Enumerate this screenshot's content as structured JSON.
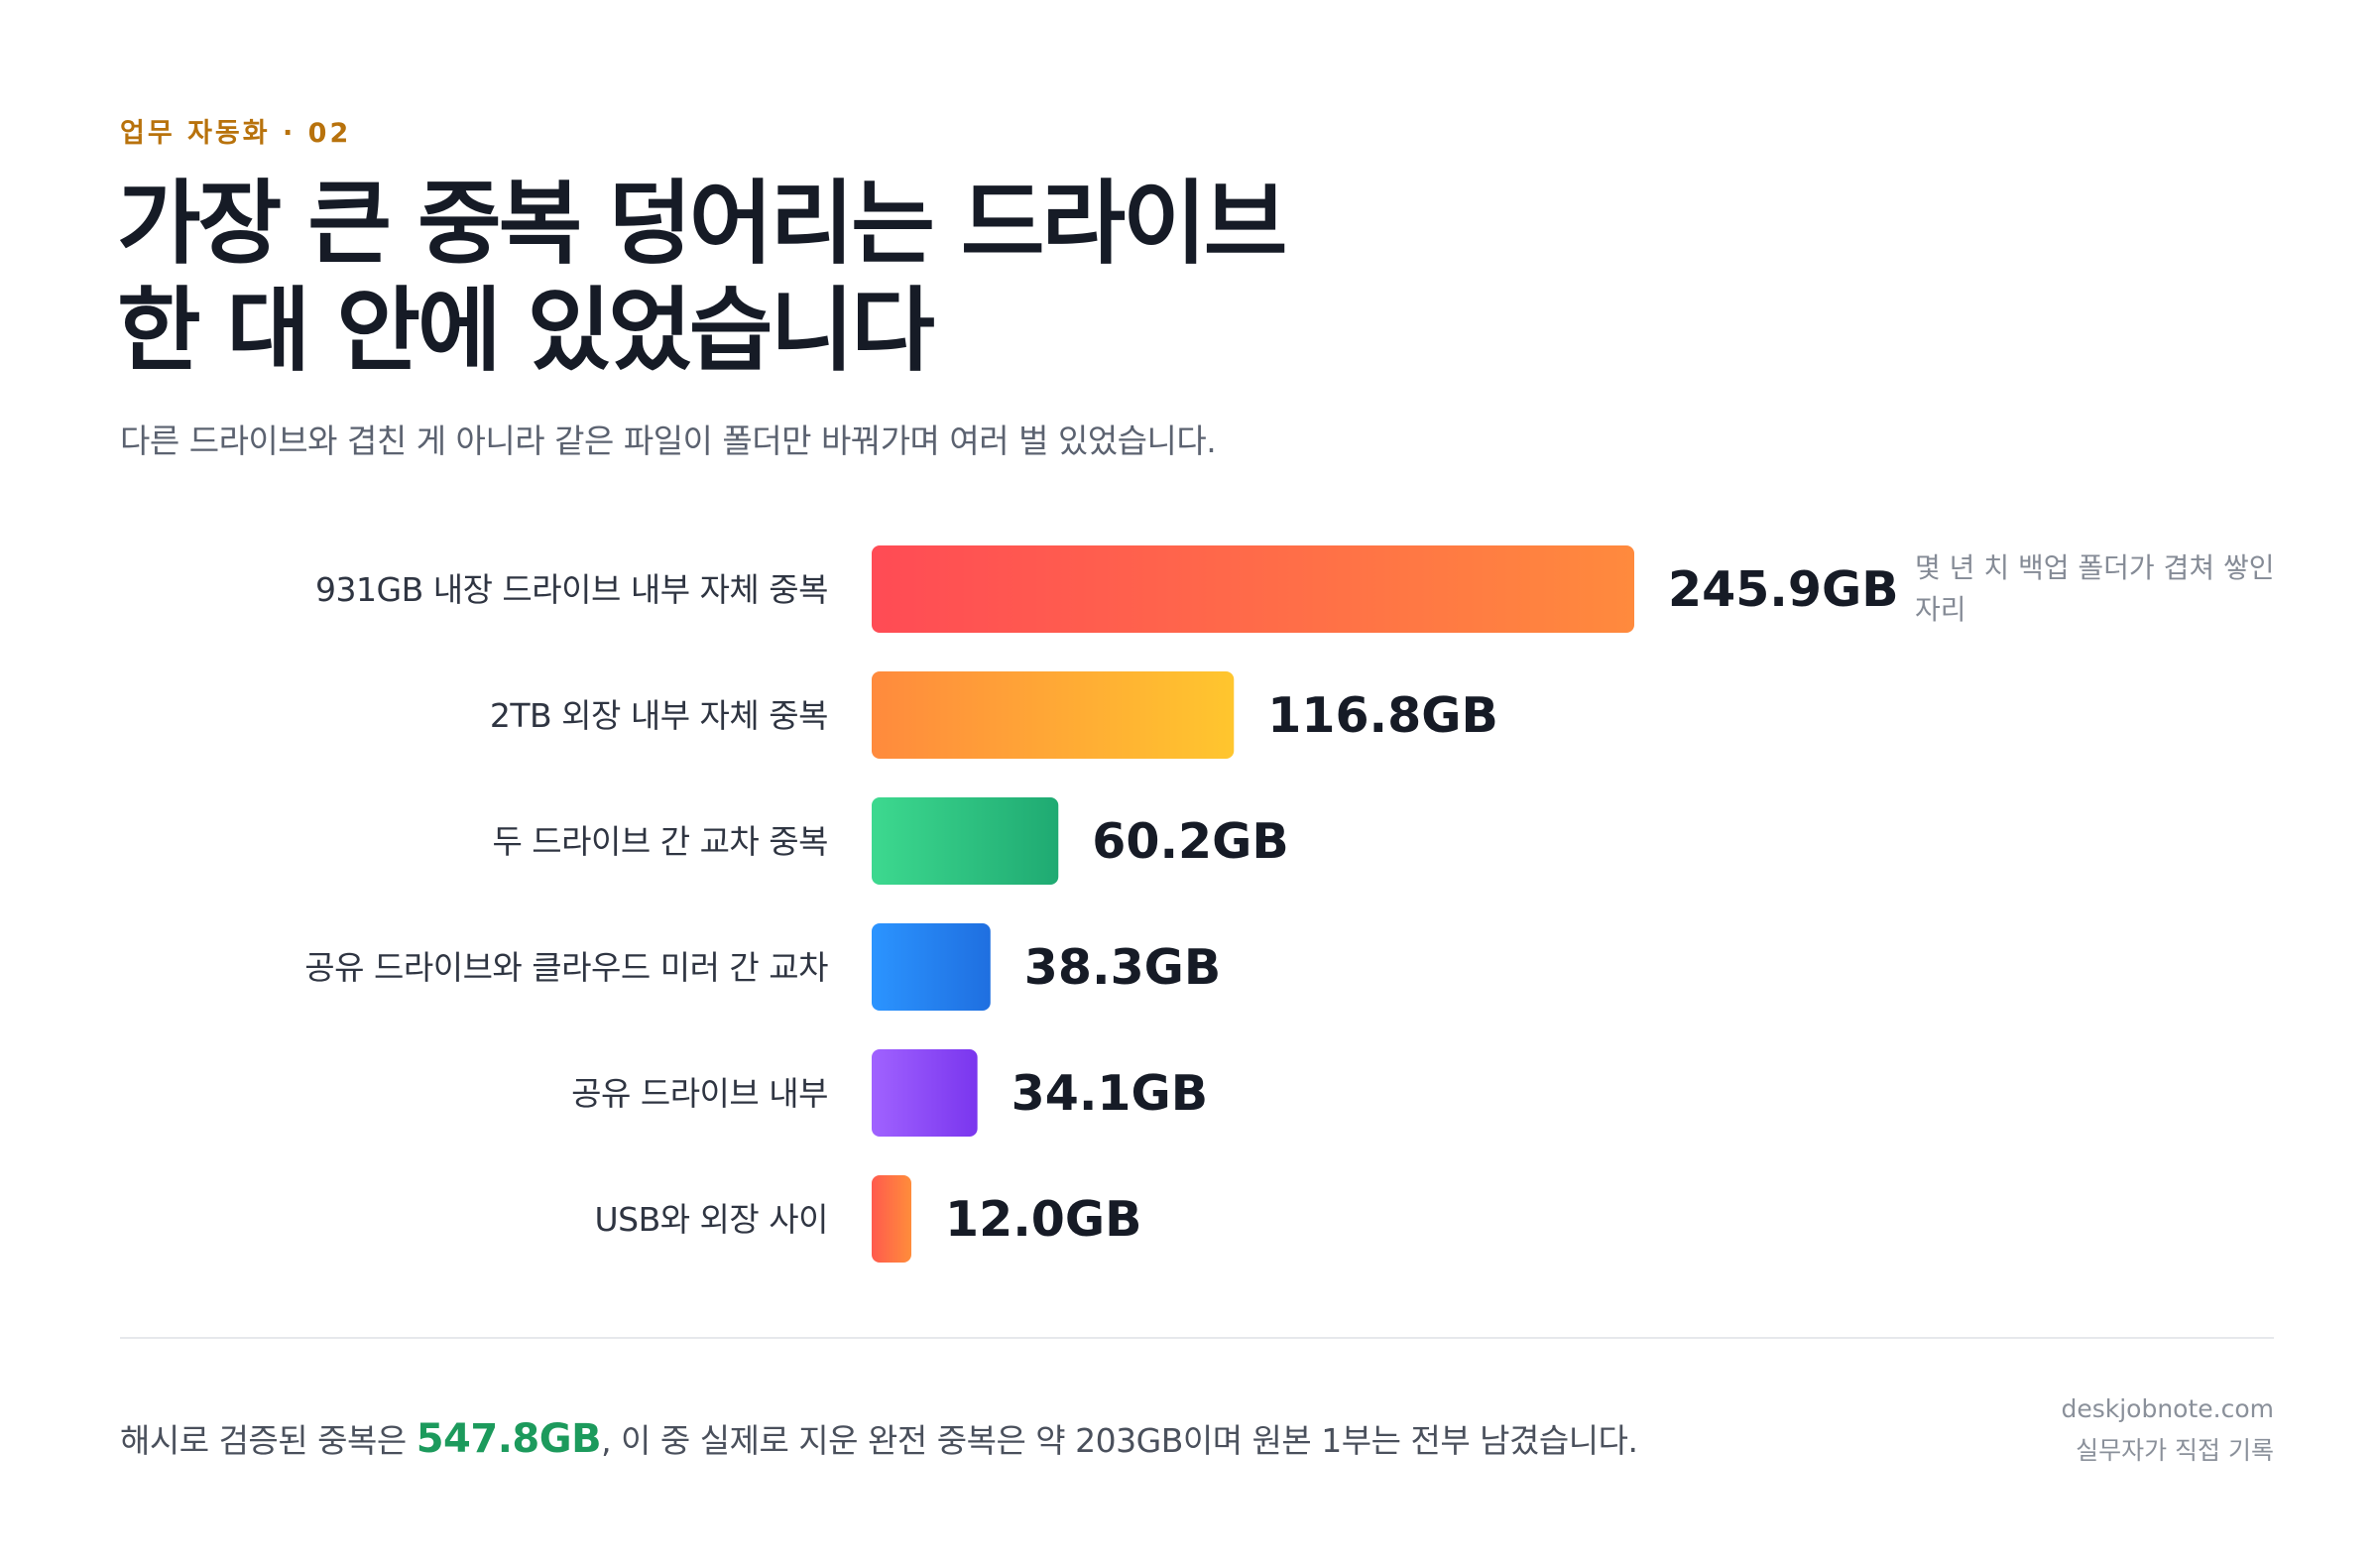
{
  "eyebrow": "업무 자동화 · 02",
  "title_lines": [
    "가장 큰 중복 덩어리는 드라이브",
    "한 대 안에 있었습니다"
  ],
  "subtitle": "다른 드라이브와 겹친 게 아니라 같은 파일이 폴더만 바꿔가며 여러 벌 있었습니다.",
  "chart_data": {
    "type": "bar",
    "orientation": "horizontal",
    "unit": "GB",
    "categories": [
      "931GB 내장 드라이브 내부 자체 중복",
      "2TB 외장 내부 자체 중복",
      "두 드라이브 간 교차 중복",
      "공유 드라이브와 클라우드 미러 간 교차",
      "공유 드라이브 내부",
      "USB와 외장 사이"
    ],
    "values": [
      245.9,
      116.8,
      60.2,
      38.3,
      34.1,
      12.0
    ],
    "value_labels": [
      "245.9GB",
      "116.8GB",
      "60.2GB",
      "38.3GB",
      "34.1GB",
      "12.0GB"
    ],
    "annotations": [
      {
        "category_index": 0,
        "lines": [
          "몇 년 치 백업 폴더가 겹쳐 쌓인",
          "자리"
        ]
      }
    ],
    "bar_gradients": [
      [
        "#ff4b55",
        "#ff8a3d"
      ],
      [
        "#ff8a3d",
        "#ffc62e"
      ],
      [
        "#3dd98f",
        "#1faa72"
      ],
      [
        "#2b94ff",
        "#1f6fe0"
      ],
      [
        "#a062ff",
        "#7a36ee"
      ],
      [
        "#ff5a4d",
        "#ff8d3b"
      ]
    ],
    "xlim": [
      0,
      245.9
    ],
    "grid": false,
    "legend": "none"
  },
  "summary": {
    "prefix": "해시로 검증된 중복은 ",
    "highlight": "547.8GB",
    "suffix": ", 이 중 실제로 지운 완전 중복은 약 203GB이며 원본 1부는 전부 남겼습니다.",
    "highlight_color": "#1c9a5c"
  },
  "source": {
    "site": "deskjobnote.com",
    "byline": "실무자가 직접 기록"
  }
}
